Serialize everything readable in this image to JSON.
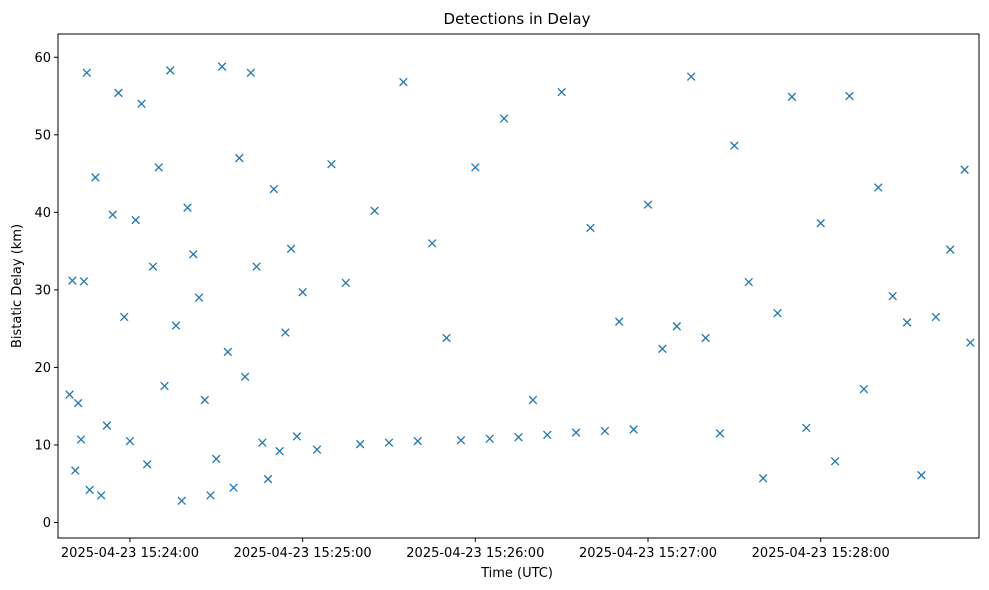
{
  "chart_data": {
    "type": "scatter",
    "title": "Detections in Delay",
    "xlabel": "Time (UTC)",
    "ylabel": "Bistatic Delay (km)",
    "x_unit": "time (UTC)",
    "xlim": [
      "2025-04-23 15:23:35",
      "2025-04-23 15:28:55"
    ],
    "ylim": [
      -2,
      63
    ],
    "x_ticks": [
      "2025-04-23 15:24:00",
      "2025-04-23 15:25:00",
      "2025-04-23 15:26:00",
      "2025-04-23 15:27:00",
      "2025-04-23 15:28:00"
    ],
    "y_ticks": [
      0,
      10,
      20,
      30,
      40,
      50,
      60
    ],
    "marker": "x",
    "grid": false,
    "colors": {
      "marker": "#1f77b4"
    },
    "series": [
      {
        "x": [
          "15:23:39",
          "15:23:40",
          "15:23:41",
          "15:23:42",
          "15:23:43",
          "15:23:44",
          "15:23:45",
          "15:23:46",
          "15:23:48",
          "15:23:50",
          "15:23:52",
          "15:23:54",
          "15:23:56",
          "15:23:58",
          "15:24:00",
          "15:24:02",
          "15:24:04",
          "15:24:06",
          "15:24:08",
          "15:24:10",
          "15:24:12",
          "15:24:14",
          "15:24:16",
          "15:24:18",
          "15:24:20",
          "15:24:22",
          "15:24:24",
          "15:24:26",
          "15:24:28",
          "15:24:30",
          "15:24:32",
          "15:24:34",
          "15:24:36",
          "15:24:38",
          "15:24:40",
          "15:24:42",
          "15:24:44",
          "15:24:46",
          "15:24:48",
          "15:24:50",
          "15:24:52",
          "15:24:54",
          "15:24:56",
          "15:24:58",
          "15:25:00",
          "15:25:05",
          "15:25:10",
          "15:25:15",
          "15:25:20",
          "15:25:25",
          "15:25:30",
          "15:25:35",
          "15:25:40",
          "15:25:45",
          "15:25:50",
          "15:25:55",
          "15:26:00",
          "15:26:05",
          "15:26:10",
          "15:26:15",
          "15:26:20",
          "15:26:25",
          "15:26:30",
          "15:26:35",
          "15:26:40",
          "15:26:45",
          "15:26:50",
          "15:26:55",
          "15:27:00",
          "15:27:05",
          "15:27:10",
          "15:27:15",
          "15:27:20",
          "15:27:25",
          "15:27:30",
          "15:27:35",
          "15:27:40",
          "15:27:45",
          "15:27:50",
          "15:27:55",
          "15:28:00",
          "15:28:05",
          "15:28:10",
          "15:28:15",
          "15:28:20",
          "15:28:25",
          "15:28:30",
          "15:28:35",
          "15:28:40",
          "15:28:45",
          "15:28:50",
          "15:28:52"
        ],
        "y": [
          16.5,
          31.2,
          6.7,
          15.4,
          10.7,
          31.1,
          58.0,
          4.2,
          44.5,
          3.5,
          12.5,
          39.7,
          55.4,
          26.5,
          10.5,
          39.0,
          54.0,
          7.5,
          33.0,
          45.8,
          17.6,
          58.3,
          25.4,
          2.8,
          40.6,
          34.6,
          29.0,
          15.8,
          3.5,
          8.2,
          58.8,
          22.0,
          4.5,
          47.0,
          18.8,
          58.0,
          33.0,
          10.3,
          5.6,
          43.0,
          9.2,
          24.5,
          35.3,
          11.1,
          29.7,
          9.4,
          46.2,
          30.9,
          10.1,
          40.2,
          10.3,
          56.8,
          10.5,
          36.0,
          23.8,
          10.6,
          45.8,
          10.8,
          52.1,
          11.0,
          15.8,
          11.3,
          55.5,
          11.6,
          38.0,
          11.8,
          25.9,
          12.0,
          41.0,
          22.4,
          25.3,
          57.5,
          23.8,
          11.5,
          48.6,
          31.0,
          5.7,
          27.0,
          54.9,
          12.2,
          38.6,
          7.9,
          55.0,
          17.2,
          43.2,
          29.2,
          25.8,
          6.1,
          26.5,
          35.2,
          45.5,
          23.2
        ]
      }
    ]
  }
}
